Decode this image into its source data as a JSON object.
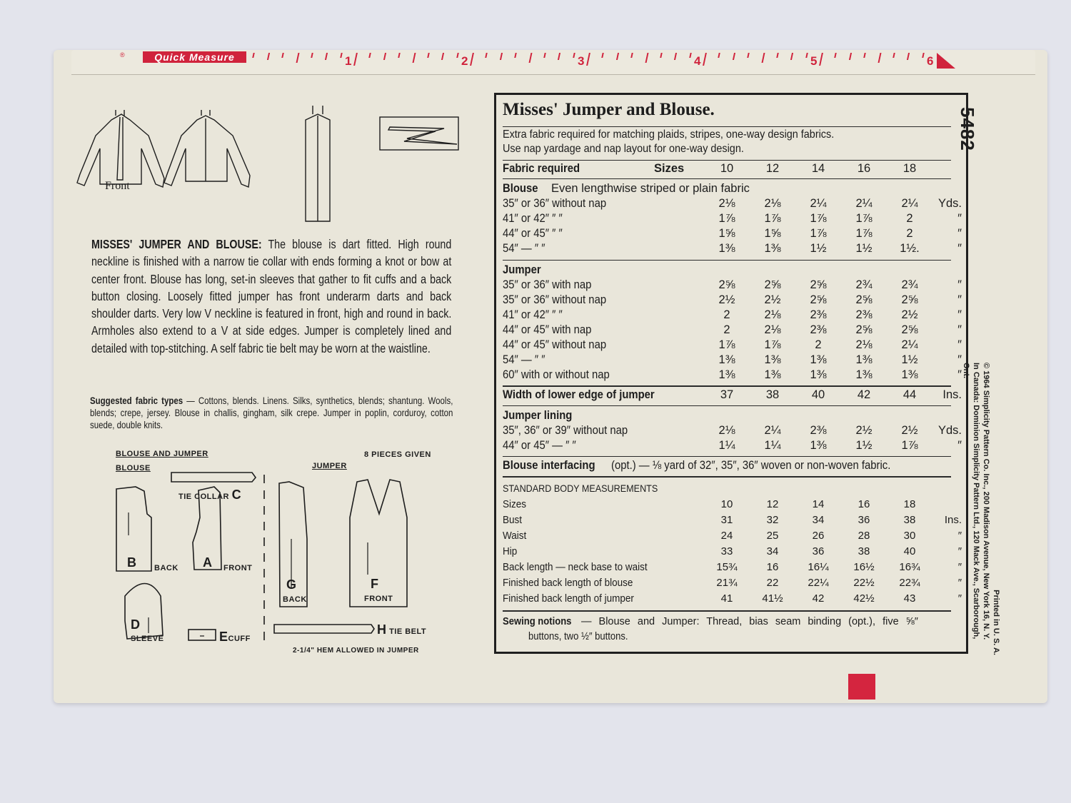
{
  "ruler": {
    "label": "Quick Measure",
    "inches": [
      "1",
      "2",
      "3",
      "4",
      "5",
      "6"
    ],
    "accent": "#d0233c"
  },
  "pattern_number": "5482",
  "illustrations": {
    "front_label": "Front"
  },
  "description": {
    "heading": "MISSES' JUMPER AND BLOUSE:",
    "body": "The blouse is dart fitted. High round neckline is finished with a narrow tie collar with ends forming a knot or bow at center front. Blouse has long, set-in sleeves that gather to fit cuffs and a back button closing. Loosely fitted jumper has front underarm darts and back shoulder darts. Very low V neckline is featured in front, high and round in back. Armholes also extend to a V at side edges. Jumper is completely lined and detailed with top-stitching. A self fabric tie belt may be worn at the waistline.",
    "fabric_heading": "Suggested fabric types",
    "fabric_body": "— Cottons, blends. Linens. Silks, synthetics, blends; shantung. Wools, blends; crepe, jersey. Blouse in challis, gingham, silk crepe. Jumper in poplin, corduroy, cotton suede, double knits."
  },
  "pieces": {
    "blouse_and_jumper": "BLOUSE AND JUMPER",
    "blouse": "BLOUSE",
    "jumper": "JUMPER",
    "count": "8 PIECES GIVEN",
    "tie_collar": "TIE COLLAR",
    "c": "C",
    "b": "B",
    "back": "BACK",
    "a": "A",
    "front": "FRONT",
    "d": "D",
    "sleeve": "SLEEVE",
    "e": "E",
    "cuff": "CUFF",
    "g": "G",
    "g_back": "BACK",
    "f": "F",
    "f_front": "FRONT",
    "h": "H",
    "tie_belt": "TIE BELT",
    "hem": "2-1/4\" HEM ALLOWED IN JUMPER"
  },
  "chart": {
    "title": "Misses' Jumper and Blouse.",
    "note1": "Extra fabric required for matching plaids, stripes, one-way design fabrics.",
    "note2": "Use nap yardage and nap layout for one-way design.",
    "header": {
      "label": "Fabric required",
      "sizes_label": "Sizes",
      "sizes": [
        "10",
        "12",
        "14",
        "16",
        "18"
      ]
    },
    "blouse": {
      "heading": "Blouse",
      "subheading": "Even lengthwise striped or plain fabric",
      "rows": [
        {
          "label": "35″ or 36″ without nap",
          "values": [
            "2⅛",
            "2⅛",
            "2¼",
            "2¼",
            "2¼"
          ],
          "unit": "Yds."
        },
        {
          "label": "41″ or 42″     ″    ″",
          "values": [
            "1⅞",
            "1⅞",
            "1⅞",
            "1⅞",
            "2"
          ],
          "unit": "″"
        },
        {
          "label": "44″ or 45″     ″    ″",
          "values": [
            "1⅝",
            "1⅝",
            "1⅞",
            "1⅞",
            "2"
          ],
          "unit": "″"
        },
        {
          "label": "54″    —     ″    ″",
          "values": [
            "1⅜",
            "1⅜",
            "1½",
            "1½",
            "1½."
          ],
          "unit": "″"
        }
      ]
    },
    "jumper": {
      "heading": "Jumper",
      "rows": [
        {
          "label": "35″ or 36″ with nap",
          "values": [
            "2⅝",
            "2⅝",
            "2⅝",
            "2¾",
            "2¾"
          ],
          "unit": "″"
        },
        {
          "label": "35″ or 36″ without nap",
          "values": [
            "2½",
            "2½",
            "2⅝",
            "2⅝",
            "2⅝"
          ],
          "unit": "″"
        },
        {
          "label": "41″ or 42″     ″    ″",
          "values": [
            "2",
            "2⅛",
            "2⅜",
            "2⅜",
            "2½"
          ],
          "unit": "″"
        },
        {
          "label": "44″ or 45″ with nap",
          "values": [
            "2",
            "2⅛",
            "2⅜",
            "2⅝",
            "2⅝"
          ],
          "unit": "″"
        },
        {
          "label": "44″ or 45″ without nap",
          "values": [
            "1⅞",
            "1⅞",
            "2",
            "2⅛",
            "2¼"
          ],
          "unit": "″"
        },
        {
          "label": "54″    —     ″    ″",
          "values": [
            "1⅜",
            "1⅜",
            "1⅜",
            "1⅜",
            "1½"
          ],
          "unit": "″"
        },
        {
          "label": "60″ with or without nap",
          "values": [
            "1⅜",
            "1⅜",
            "1⅜",
            "1⅜",
            "1⅜"
          ],
          "unit": "″"
        }
      ]
    },
    "width": {
      "label": "Width of lower edge of jumper",
      "values": [
        "37",
        "38",
        "40",
        "42",
        "44"
      ],
      "unit": "Ins."
    },
    "lining": {
      "heading": "Jumper lining",
      "rows": [
        {
          "label": "35″, 36″ or 39″ without nap",
          "values": [
            "2⅛",
            "2¼",
            "2⅜",
            "2½",
            "2½"
          ],
          "unit": "Yds."
        },
        {
          "label": "44″ or 45″   —    ″    ″",
          "values": [
            "1¼",
            "1¼",
            "1⅜",
            "1½",
            "1⅞"
          ],
          "unit": "″"
        }
      ]
    },
    "interfacing": {
      "label": "Blouse interfacing",
      "text": "(opt.) — ⅛ yard of 32″, 35″, 36″ woven or non-woven fabric."
    },
    "measurements": {
      "heading": "STANDARD BODY MEASUREMENTS",
      "rows": [
        {
          "label": "Sizes",
          "values": [
            "10",
            "12",
            "14",
            "16",
            "18"
          ],
          "unit": ""
        },
        {
          "label": "Bust",
          "values": [
            "31",
            "32",
            "34",
            "36",
            "38"
          ],
          "unit": "Ins."
        },
        {
          "label": "Waist",
          "values": [
            "24",
            "25",
            "26",
            "28",
            "30"
          ],
          "unit": "″"
        },
        {
          "label": "Hip",
          "values": [
            "33",
            "34",
            "36",
            "38",
            "40"
          ],
          "unit": "″"
        },
        {
          "label": "Back length — neck base to waist",
          "values": [
            "15¾",
            "16",
            "16¼",
            "16½",
            "16¾"
          ],
          "unit": "″"
        },
        {
          "label": "Finished back length of blouse",
          "values": [
            "21¾",
            "22",
            "22¼",
            "22½",
            "22¾"
          ],
          "unit": "″"
        },
        {
          "label": "Finished back length of jumper",
          "values": [
            "41",
            "41½",
            "42",
            "42½",
            "43"
          ],
          "unit": "″"
        }
      ]
    },
    "notions": {
      "label": "Sewing notions",
      "text": "— Blouse and Jumper: Thread, bias seam binding (opt.), five ⅝″",
      "text2": "buttons, two ½″ buttons."
    }
  },
  "imprint": {
    "line1": "Printed in U. S. A.",
    "line2": "© 1964 Simplicity Pattern Co. Inc., 200 Madison Avenue, New York 16, N. Y.",
    "line3": "In Canada: Dominion Simplicity Pattern Ltd., 120 Mack Ave., Scarborough, Ont."
  }
}
